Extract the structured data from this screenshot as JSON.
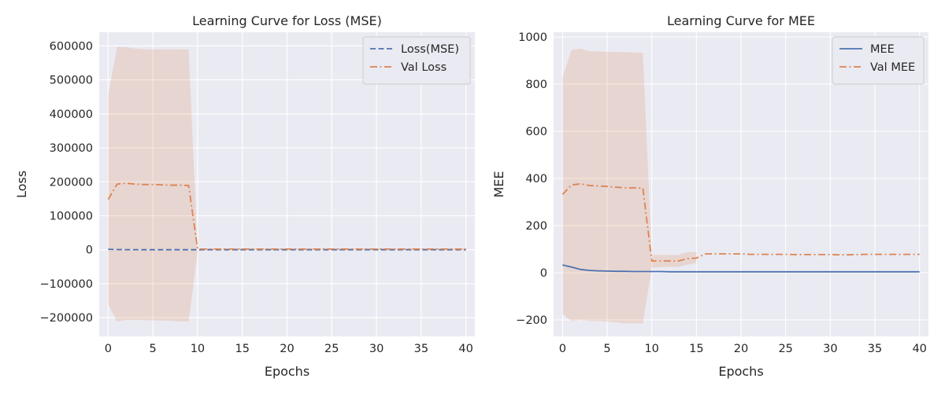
{
  "chart_data": [
    {
      "type": "line",
      "title": "Learning Curve for Loss (MSE)",
      "xlabel": "Epochs",
      "ylabel": "Loss",
      "xlim": [
        -1,
        41
      ],
      "ylim": [
        -255000,
        640000
      ],
      "xticks": [
        0,
        5,
        10,
        15,
        20,
        25,
        30,
        35,
        40
      ],
      "yticks": [
        -200000,
        -100000,
        0,
        100000,
        200000,
        300000,
        400000,
        500000,
        600000
      ],
      "ytick_labels": [
        "−200000",
        "−100000",
        "0",
        "100000",
        "200000",
        "300000",
        "400000",
        "500000",
        "600000"
      ],
      "grid": true,
      "legend_position": "upper right",
      "band": {
        "x": [
          0,
          1,
          2,
          3,
          4,
          5,
          6,
          7,
          8,
          9,
          10,
          11,
          12,
          13,
          14,
          15,
          16,
          17,
          18,
          19,
          20,
          21,
          22,
          23,
          24,
          25,
          26,
          27,
          28,
          29,
          30,
          31,
          32,
          33,
          34,
          35,
          36,
          37,
          38,
          39,
          40
        ],
        "upper": [
          455000,
          597000,
          596000,
          592000,
          590000,
          590000,
          590000,
          590000,
          590000,
          589000,
          -5000,
          4000,
          4000,
          4000,
          4000,
          4000,
          4000,
          4000,
          4000,
          4000,
          4000,
          4000,
          4000,
          4000,
          4000,
          4000,
          4000,
          4000,
          4000,
          4000,
          4000,
          4000,
          4000,
          4000,
          4000,
          4000,
          4000,
          4000,
          4000,
          4000,
          4000
        ],
        "lower": [
          -160000,
          -212000,
          -206000,
          -207000,
          -207000,
          -208000,
          -208000,
          -209000,
          -211000,
          -211000,
          -5000,
          -1000,
          -1000,
          -1000,
          -1000,
          -1000,
          -1000,
          -1000,
          -1000,
          -1000,
          -1000,
          -1000,
          -1000,
          -1000,
          -1000,
          -1000,
          -1000,
          -1000,
          -1000,
          -1000,
          -1000,
          -1000,
          -1000,
          -1000,
          -1000,
          -1000,
          -1000,
          -1000,
          -1000,
          -1000,
          -1000
        ]
      },
      "series": [
        {
          "name": "Loss(MSE)",
          "color": "#4c72b0",
          "style": "dashed",
          "x": [
            0,
            1,
            2,
            3,
            4,
            5,
            6,
            7,
            8,
            9,
            10,
            11,
            12,
            13,
            14,
            15,
            16,
            17,
            18,
            19,
            20,
            21,
            22,
            23,
            24,
            25,
            26,
            27,
            28,
            29,
            30,
            31,
            32,
            33,
            34,
            35,
            36,
            37,
            38,
            39,
            40
          ],
          "values": [
            1500,
            500,
            300,
            200,
            150,
            100,
            100,
            100,
            100,
            100,
            100,
            100,
            100,
            100,
            100,
            100,
            100,
            100,
            100,
            100,
            100,
            100,
            100,
            100,
            100,
            100,
            100,
            100,
            100,
            100,
            100,
            100,
            100,
            100,
            100,
            100,
            100,
            100,
            100,
            100,
            100
          ]
        },
        {
          "name": "Val Loss",
          "color": "#dd8452",
          "style": "dashdot",
          "x": [
            0,
            1,
            2,
            3,
            4,
            5,
            6,
            7,
            8,
            9,
            10,
            11,
            12,
            13,
            14,
            15,
            16,
            17,
            18,
            19,
            20,
            21,
            22,
            23,
            24,
            25,
            26,
            27,
            28,
            29,
            30,
            31,
            32,
            33,
            34,
            35,
            36,
            37,
            38,
            39,
            40
          ],
          "values": [
            148000,
            193000,
            196000,
            193000,
            192000,
            192000,
            191000,
            190000,
            190000,
            189000,
            2000,
            2000,
            2000,
            2000,
            2000,
            2000,
            2000,
            2000,
            2000,
            2000,
            2000,
            2000,
            2000,
            2000,
            2000,
            2000,
            2000,
            2000,
            2000,
            2000,
            2000,
            2000,
            2000,
            2000,
            2000,
            2000,
            2000,
            2000,
            2000,
            2000,
            2000
          ]
        }
      ]
    },
    {
      "type": "line",
      "title": "Learning Curve for MEE",
      "xlabel": "Epochs",
      "ylabel": "MEE",
      "xlim": [
        -1,
        41
      ],
      "ylim": [
        -270,
        1020
      ],
      "xticks": [
        0,
        5,
        10,
        15,
        20,
        25,
        30,
        35,
        40
      ],
      "yticks": [
        -200,
        0,
        200,
        400,
        600,
        800,
        1000
      ],
      "ytick_labels": [
        "−200",
        "0",
        "200",
        "400",
        "600",
        "800",
        "1000"
      ],
      "grid": true,
      "legend_position": "upper right",
      "band": {
        "x": [
          0,
          1,
          2,
          3,
          4,
          5,
          6,
          7,
          8,
          9,
          10,
          11,
          12,
          13,
          14,
          15
        ],
        "upper": [
          830,
          945,
          950,
          940,
          938,
          937,
          936,
          935,
          934,
          932,
          75,
          76,
          76,
          76,
          88,
          88
        ],
        "lower": [
          -175,
          -205,
          -200,
          -205,
          -206,
          -207,
          -210,
          -215,
          -214,
          -215,
          22,
          24,
          24,
          25,
          34,
          40
        ]
      },
      "series": [
        {
          "name": "MEE",
          "color": "#4c72b0",
          "style": "solid",
          "x": [
            0,
            1,
            2,
            3,
            4,
            5,
            6,
            7,
            8,
            9,
            10,
            11,
            12,
            13,
            14,
            15,
            16,
            17,
            18,
            19,
            20,
            21,
            22,
            23,
            24,
            25,
            26,
            27,
            28,
            29,
            30,
            31,
            32,
            33,
            34,
            35,
            36,
            37,
            38,
            39,
            40
          ],
          "values": [
            33,
            24,
            14,
            10,
            8,
            7,
            6,
            6,
            5,
            5,
            5,
            5,
            4,
            4,
            4,
            4,
            4,
            4,
            4,
            4,
            4,
            4,
            4,
            4,
            4,
            4,
            4,
            4,
            4,
            4,
            4,
            4,
            4,
            4,
            4,
            4,
            4,
            4,
            4,
            4,
            4
          ]
        },
        {
          "name": "Val MEE",
          "color": "#dd8452",
          "style": "dashdot",
          "x": [
            0,
            1,
            2,
            3,
            4,
            5,
            6,
            7,
            8,
            9,
            10,
            11,
            12,
            13,
            14,
            15,
            16,
            17,
            18,
            19,
            20,
            21,
            22,
            23,
            24,
            25,
            26,
            27,
            28,
            29,
            30,
            31,
            32,
            33,
            34,
            35,
            36,
            37,
            38,
            39,
            40
          ],
          "values": [
            332,
            372,
            377,
            370,
            368,
            366,
            363,
            360,
            360,
            359,
            50,
            50,
            50,
            50,
            60,
            62,
            80,
            80,
            80,
            80,
            80,
            78,
            78,
            78,
            78,
            78,
            77,
            77,
            77,
            77,
            77,
            76,
            76,
            77,
            78,
            78,
            78,
            78,
            78,
            78,
            78
          ]
        }
      ]
    }
  ]
}
